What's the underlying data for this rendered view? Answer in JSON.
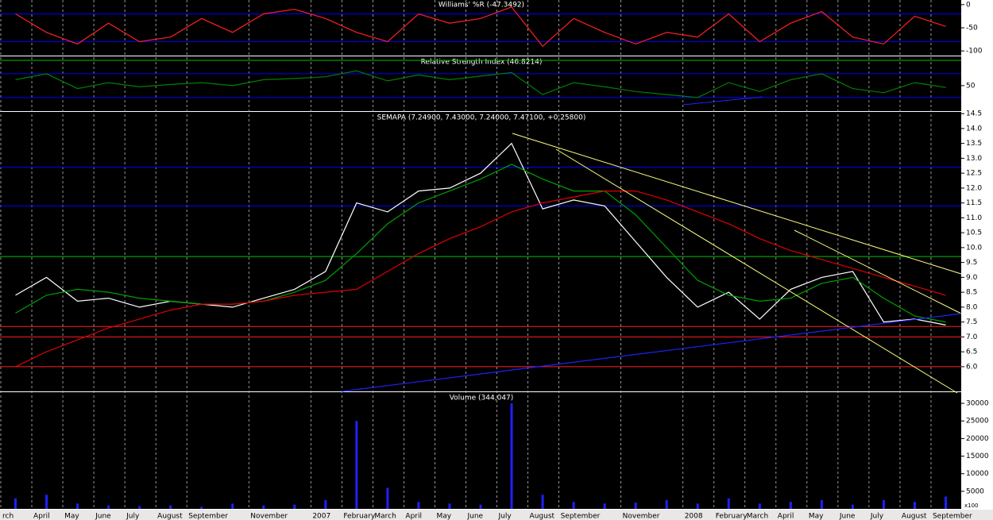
{
  "chart_data": [
    {
      "type": "line",
      "title": "Williams' %R (-47.3492)",
      "ylim": [
        -110,
        10
      ],
      "yticks": [
        0,
        -50,
        -100
      ],
      "levels": [
        {
          "value": -20,
          "color": "#0000ff"
        },
        {
          "value": -80,
          "color": "#0000ff"
        }
      ],
      "series": [
        {
          "color": "#ff2020",
          "values": [
            -20,
            -60,
            -85,
            -40,
            -80,
            -70,
            -30,
            -60,
            -20,
            -10,
            -30,
            -60,
            -80,
            -20,
            -40,
            -30,
            -5,
            -90,
            -30,
            -60,
            -85,
            -60,
            -70,
            -20,
            -80,
            -40,
            -15,
            -70,
            -85,
            -25,
            -47
          ]
        }
      ]
    },
    {
      "type": "line",
      "title": "Relative Strength Index (46.8214)",
      "ylim": [
        7,
        98
      ],
      "yticks": [
        50
      ],
      "levels": [
        {
          "value": 92.7,
          "color": "#00c000"
        },
        {
          "value": 70,
          "color": "#0000ff"
        },
        {
          "value": 30,
          "color": "#0000ff"
        }
      ],
      "series": [
        {
          "color": "#008000",
          "values": [
            60,
            70,
            45,
            55,
            48,
            52,
            55,
            50,
            60,
            62,
            65,
            75,
            58,
            68,
            60,
            66,
            72,
            35,
            55,
            48,
            40,
            35,
            30,
            55,
            40,
            60,
            70,
            45,
            38,
            55,
            47
          ]
        }
      ]
    },
    {
      "type": "line",
      "title": "SEMAPA (7.24900, 7.43000, 7.24000, 7.47100, +0.25800)",
      "ylim": [
        5.17,
        14.53
      ],
      "yticks": [
        {
          "value": 6,
          "label": "6.0"
        },
        {
          "value": 6.5,
          "label": "6.5"
        },
        {
          "value": 7,
          "label": "7.0"
        },
        {
          "value": 7.5,
          "label": "7.5"
        },
        {
          "value": 8,
          "label": "8.0"
        },
        {
          "value": 8.5,
          "label": "8.5"
        },
        {
          "value": 9,
          "label": "9.0"
        },
        {
          "value": 9.5,
          "label": "9.5"
        },
        {
          "value": 10,
          "label": "10.0"
        },
        {
          "value": 10.5,
          "label": "10.5"
        },
        {
          "value": 11,
          "label": "11.0"
        },
        {
          "value": 11.5,
          "label": "11.5"
        },
        {
          "value": 12,
          "label": "12.0"
        },
        {
          "value": 12.5,
          "label": "12.5"
        },
        {
          "value": 13,
          "label": "13.0"
        },
        {
          "value": 13.5,
          "label": "13.5"
        },
        {
          "value": 14,
          "label": "14.0"
        },
        {
          "value": 14.5,
          "label": "14.5"
        }
      ],
      "levels": [
        {
          "value": 12.7,
          "color": "#0000ff"
        },
        {
          "value": 11.4,
          "color": "#0000ff"
        },
        {
          "value": 9.7,
          "color": "#00c000"
        },
        {
          "value": 7.35,
          "color": "#ff2020"
        },
        {
          "value": 7,
          "color": "#ff2020"
        },
        {
          "value": 6,
          "color": "#ff2020"
        }
      ],
      "series": [
        {
          "color": "#ffffff",
          "values": [
            8.4,
            9.0,
            8.2,
            8.3,
            8.0,
            8.2,
            8.1,
            8.0,
            8.3,
            8.6,
            9.2,
            11.5,
            11.2,
            11.9,
            12.0,
            12.5,
            13.5,
            11.3,
            11.6,
            11.4,
            10.2,
            9.0,
            8.0,
            8.5,
            7.6,
            8.6,
            9.0,
            9.2,
            7.5,
            7.6,
            7.4
          ]
        },
        {
          "color": "#00a000",
          "values": [
            7.8,
            8.4,
            8.6,
            8.5,
            8.3,
            8.2,
            8.1,
            8.1,
            8.2,
            8.5,
            8.9,
            9.8,
            10.8,
            11.5,
            11.9,
            12.3,
            12.8,
            12.3,
            11.9,
            11.9,
            11.1,
            10.0,
            8.9,
            8.4,
            8.2,
            8.3,
            8.8,
            9.0,
            8.3,
            7.7,
            7.5
          ]
        },
        {
          "color": "#e00000",
          "values": [
            6.0,
            6.5,
            6.9,
            7.3,
            7.6,
            7.9,
            8.1,
            8.1,
            8.2,
            8.4,
            8.5,
            8.6,
            9.2,
            9.8,
            10.3,
            10.7,
            11.2,
            11.5,
            11.7,
            11.9,
            11.9,
            11.6,
            11.2,
            10.8,
            10.3,
            9.9,
            9.6,
            9.3,
            9.0,
            8.7,
            8.4
          ]
        }
      ]
    },
    {
      "type": "bar",
      "title": "Volume (344,047)",
      "unit_label": "x100",
      "ylim": [
        0,
        32950
      ],
      "yticks": [
        5000,
        10000,
        15000,
        20000,
        25000,
        30000
      ],
      "color": "#2020ff",
      "categories": [
        "rch",
        "April",
        "May",
        "June",
        "July",
        "August",
        "September",
        null,
        "November",
        null,
        "2007",
        "February",
        "March",
        "April",
        "May",
        "June",
        "July",
        "August",
        "September",
        null,
        "November",
        null,
        "2008",
        "February",
        "March",
        "April",
        "May",
        "June",
        "July",
        "August",
        "September"
      ],
      "values": [
        3000,
        4000,
        1500,
        1000,
        800,
        1000,
        600,
        1500,
        1000,
        1200,
        2500,
        25000,
        6000,
        2000,
        1500,
        1200,
        30000,
        4000,
        2000,
        1500,
        1800,
        2500,
        1500,
        3000,
        1500,
        2000,
        2500,
        1200,
        2500,
        2000,
        3500
      ]
    }
  ]
}
